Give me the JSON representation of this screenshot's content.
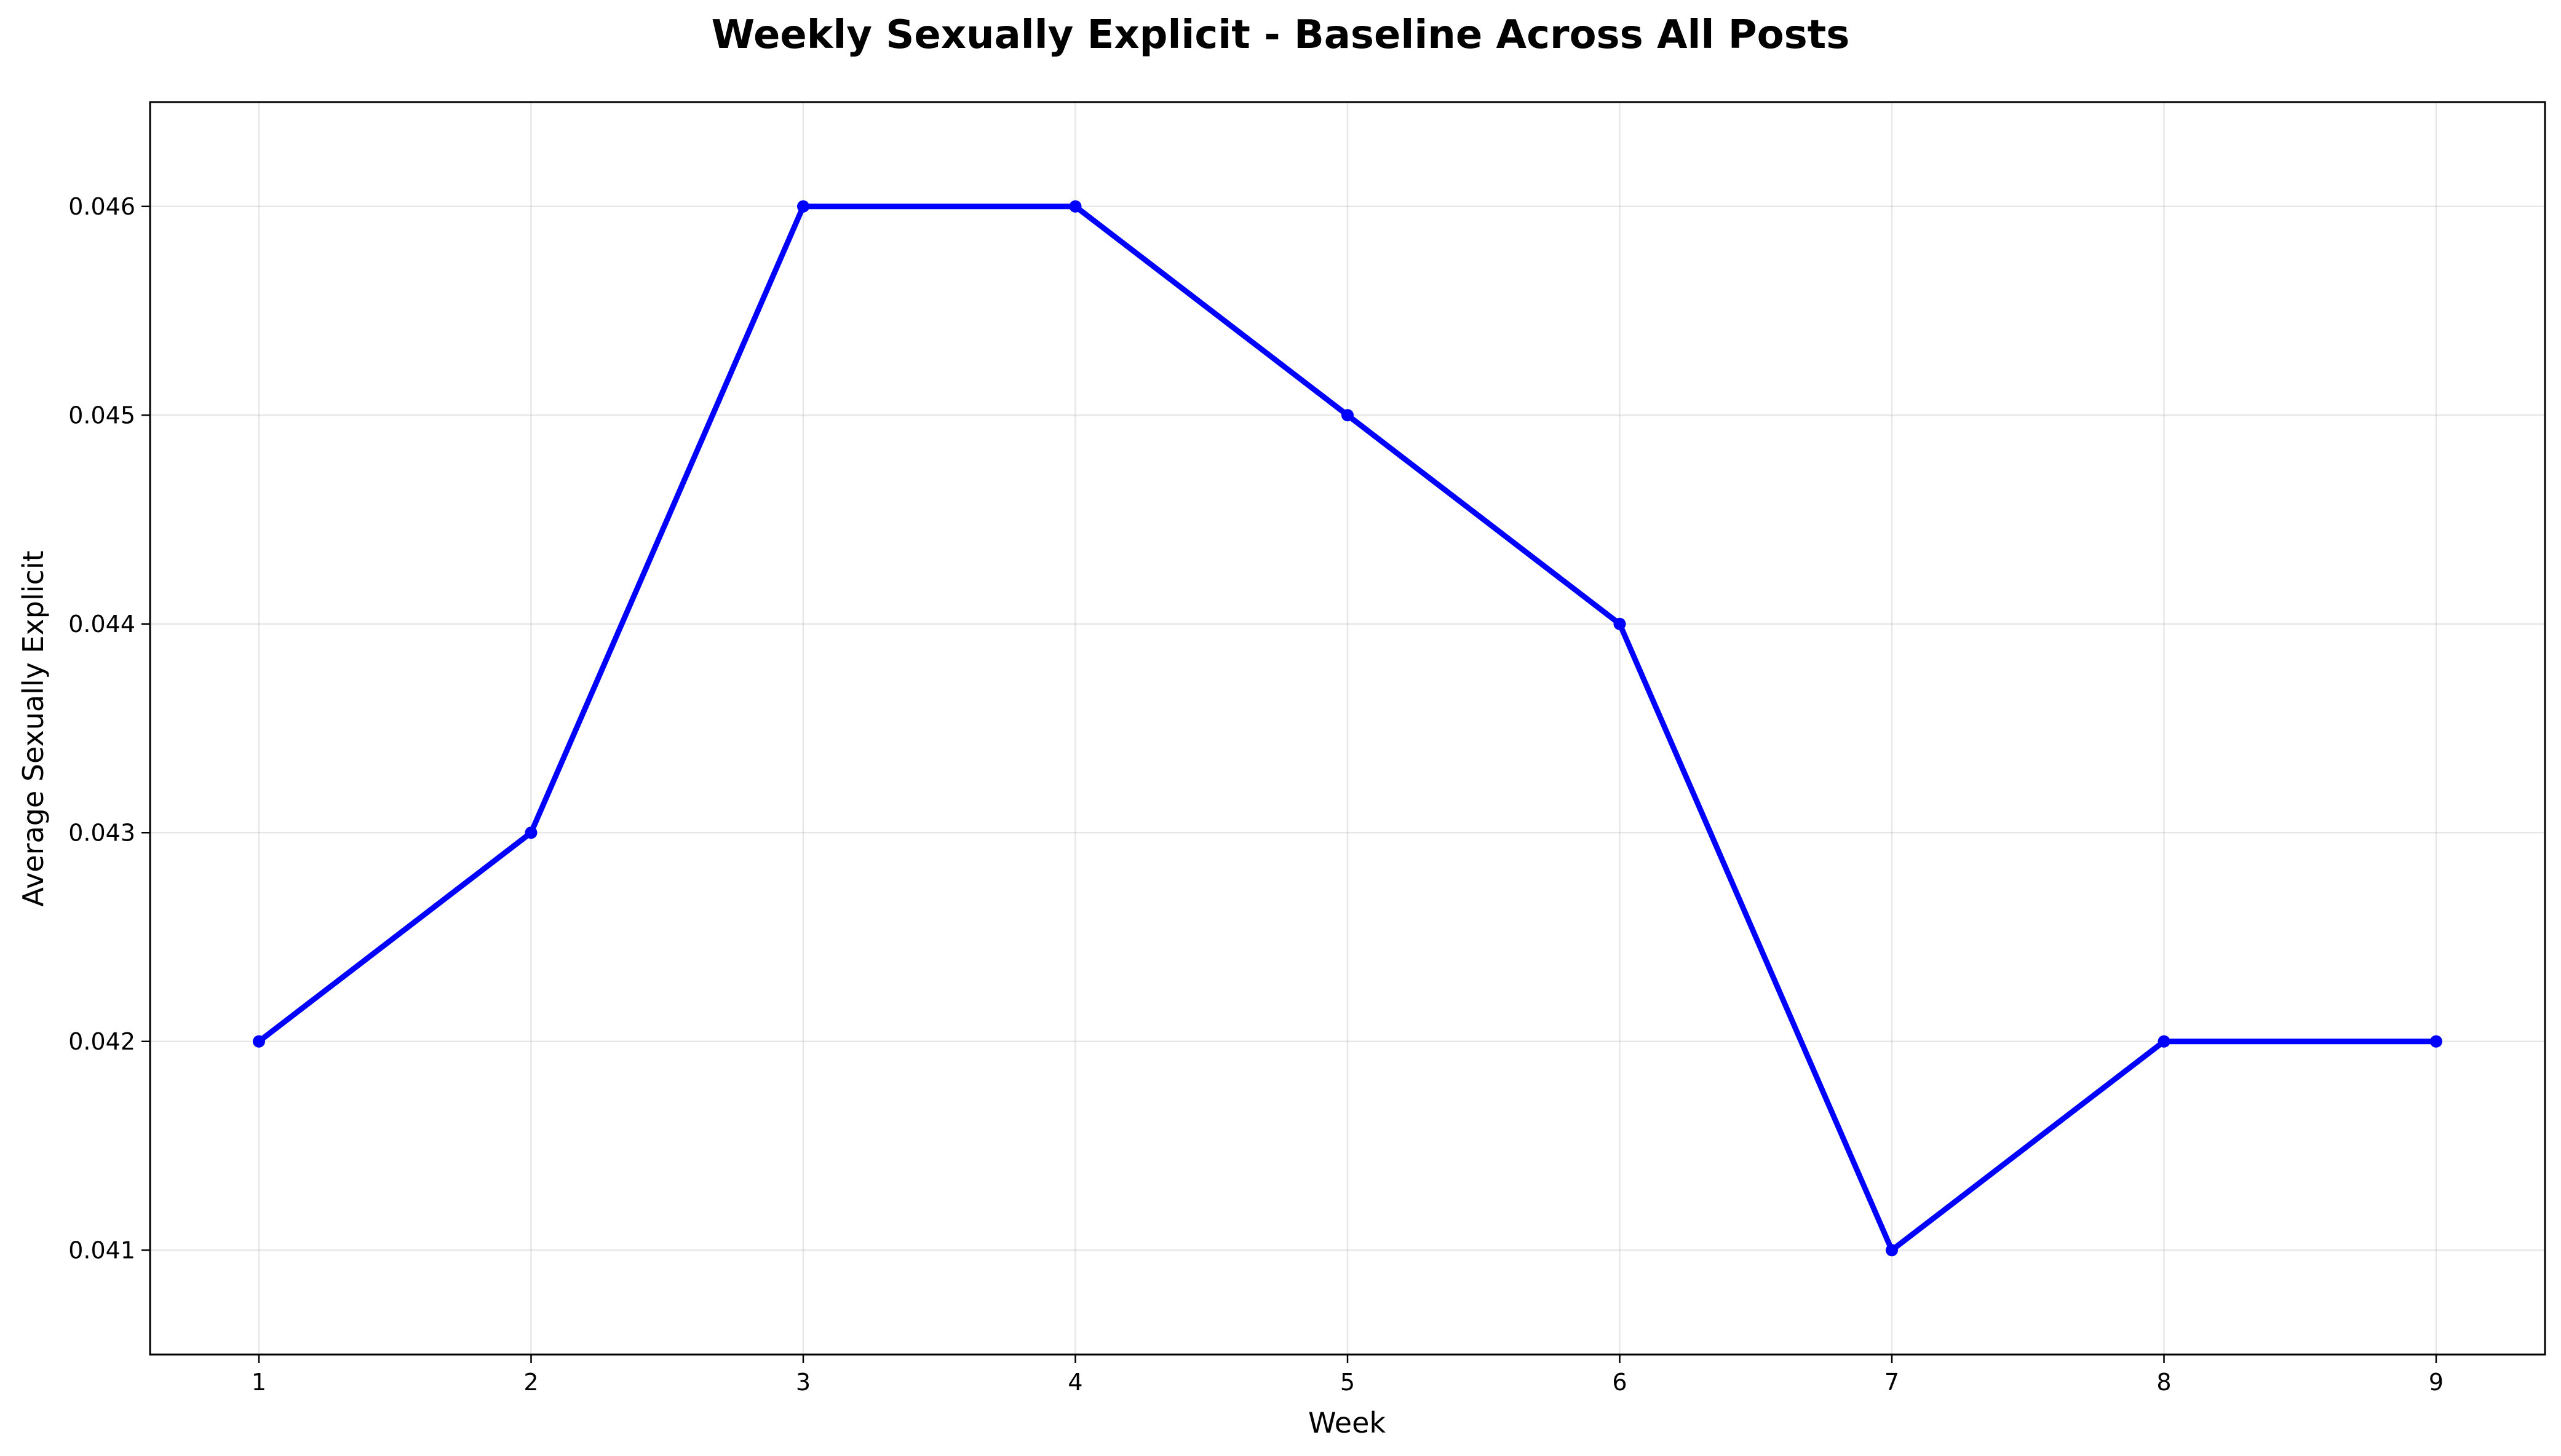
{
  "chart_data": {
    "type": "line",
    "title": "Weekly Sexually Explicit - Baseline Across All Posts",
    "xlabel": "Week",
    "ylabel": "Average Sexually Explicit",
    "x": [
      1,
      2,
      3,
      4,
      5,
      6,
      7,
      8,
      9
    ],
    "series": [
      {
        "values": [
          0.042,
          0.043,
          0.046,
          0.046,
          0.045,
          0.044,
          0.041,
          0.042,
          0.042
        ],
        "color": "#0000ff",
        "marker": "circle"
      }
    ],
    "xticks": [
      "1",
      "2",
      "3",
      "4",
      "5",
      "6",
      "7",
      "8",
      "9"
    ],
    "yticks": [
      "0.041",
      "0.042",
      "0.043",
      "0.044",
      "0.045",
      "0.046"
    ],
    "xlim": [
      0.6,
      9.4
    ],
    "ylim": [
      0.0405,
      0.0465
    ],
    "grid": true,
    "legend": "none"
  }
}
